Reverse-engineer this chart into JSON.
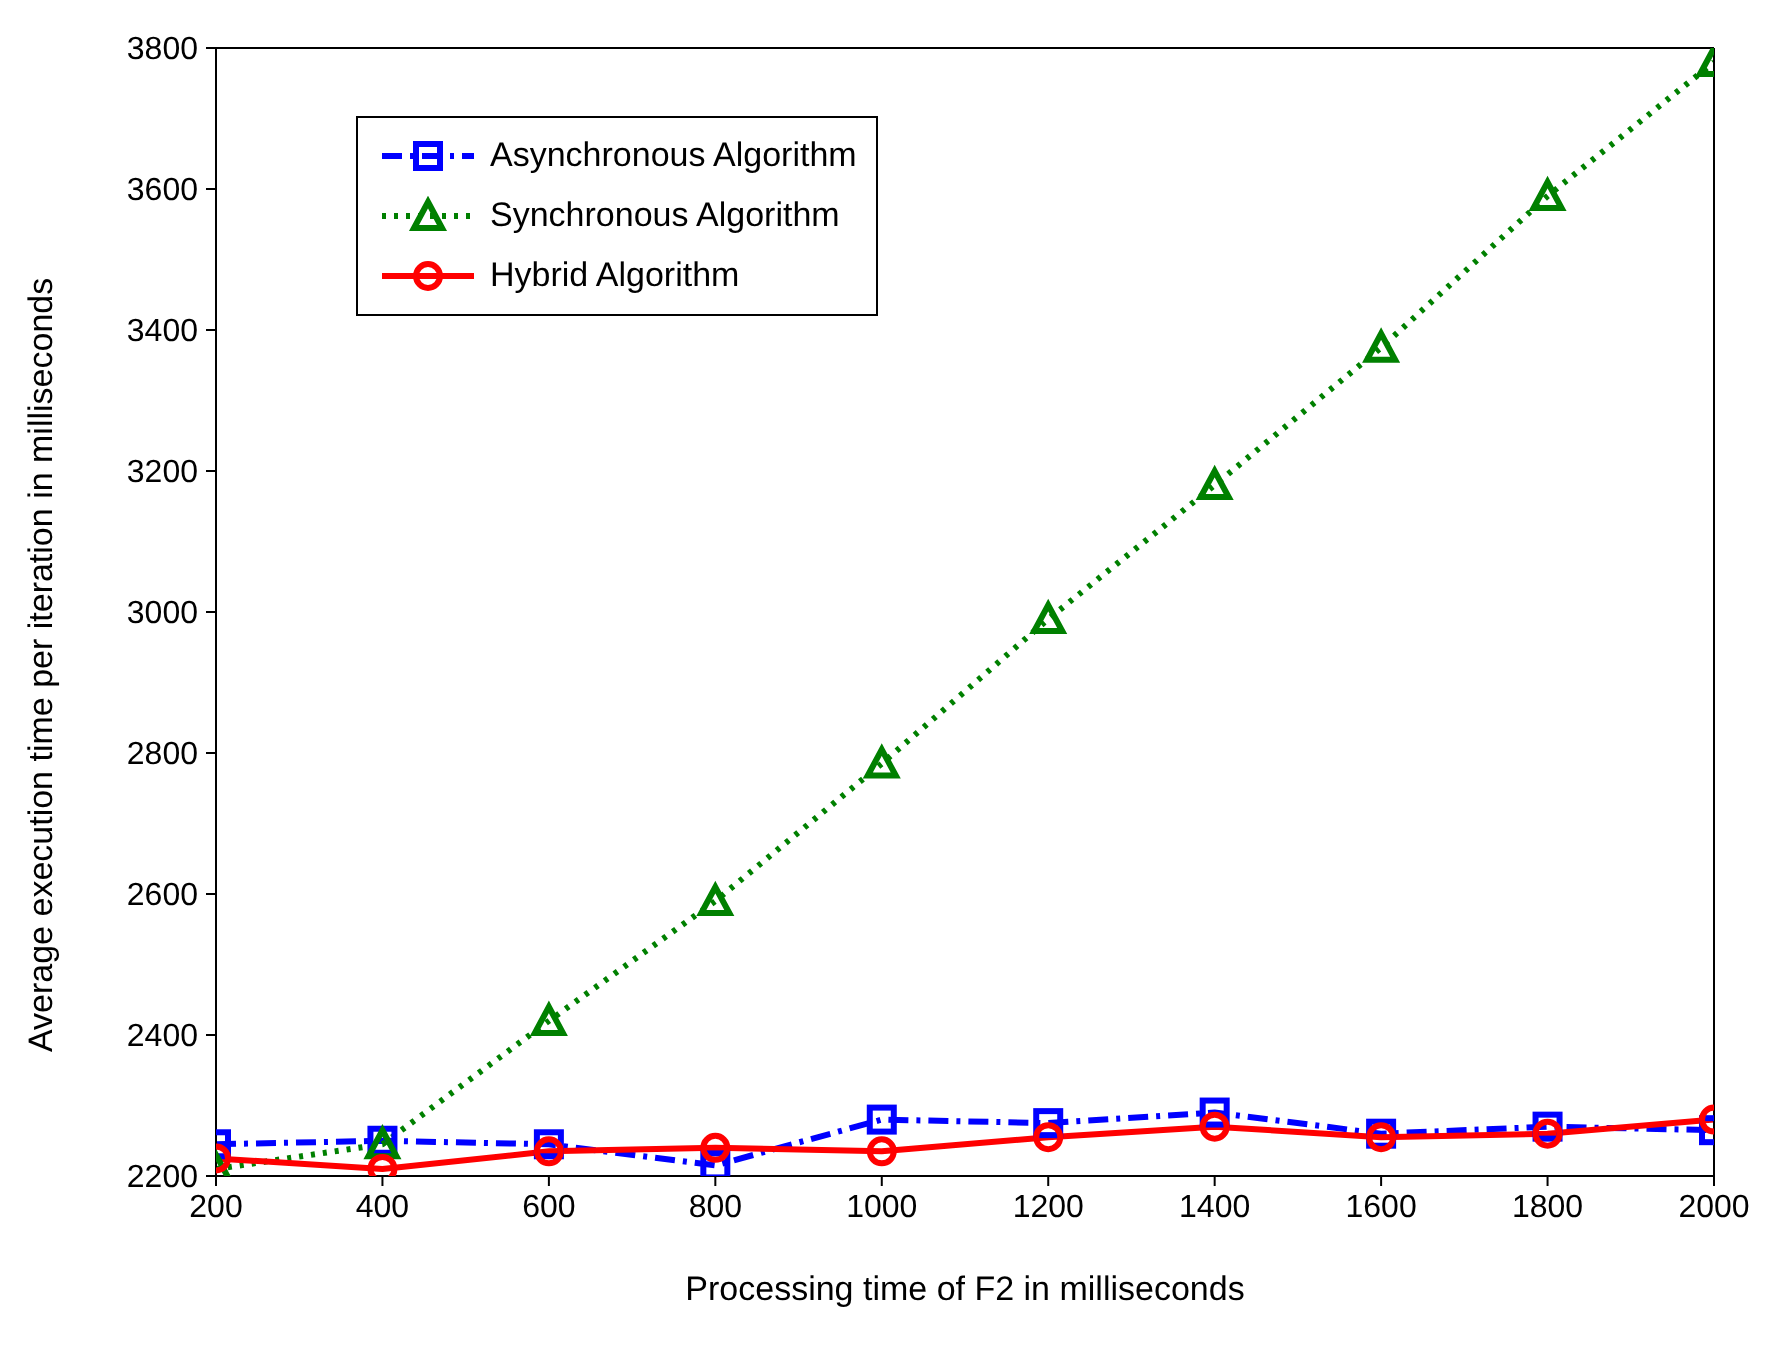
{
  "chart_data": {
    "type": "line",
    "xlabel": "Processing time of F2 in milliseconds",
    "ylabel": "Average execution time per iteration in milliseconds",
    "x": [
      200,
      400,
      600,
      800,
      1000,
      1200,
      1400,
      1600,
      1800,
      2000
    ],
    "series": [
      {
        "name": "Asynchronous Algorithm",
        "color": "#0000ff",
        "marker": "square",
        "line_style": "dashed",
        "values": [
          2245,
          2250,
          2245,
          2215,
          2280,
          2275,
          2290,
          2260,
          2270,
          2265
        ]
      },
      {
        "name": "Synchronous Algorithm",
        "color": "#008000",
        "marker": "triangle",
        "line_style": "dotted",
        "values": [
          2210,
          2245,
          2420,
          2590,
          2785,
          2990,
          3180,
          3375,
          3590,
          3780
        ]
      },
      {
        "name": "Hybrid Algorithm",
        "color": "#ff0000",
        "marker": "circle",
        "line_style": "solid",
        "values": [
          2225,
          2210,
          2235,
          2240,
          2235,
          2255,
          2270,
          2255,
          2260,
          2280
        ]
      }
    ],
    "xlim": [
      200,
      2000
    ],
    "xticks": [
      200,
      400,
      600,
      800,
      1000,
      1200,
      1400,
      1600,
      1800,
      2000
    ],
    "ylim": [
      2200,
      3800
    ],
    "yticks": [
      2200,
      2400,
      2600,
      2800,
      3000,
      3200,
      3400,
      3600,
      3800
    ],
    "grid": false,
    "legend": "top left"
  }
}
